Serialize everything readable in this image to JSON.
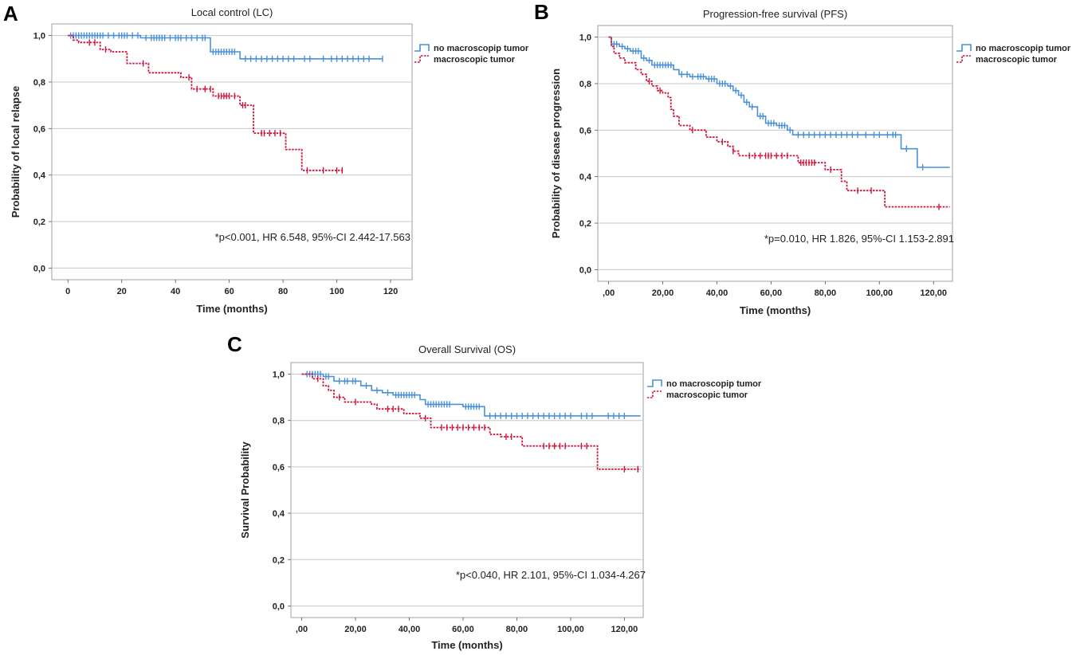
{
  "chart_data": [
    {
      "panel": "A",
      "type": "line",
      "title": "Local control (LC)",
      "xlabel": "Time (months)",
      "ylabel": "Probability of local relapse",
      "xlim": [
        -6,
        128
      ],
      "ylim": [
        -0.05,
        1.05
      ],
      "xticks": [
        0,
        20,
        40,
        60,
        80,
        100,
        120
      ],
      "xtick_labels": [
        "0",
        "20",
        "40",
        "60",
        "80",
        "100",
        "120"
      ],
      "yticks": [
        0.0,
        0.2,
        0.4,
        0.6,
        0.8,
        1.0
      ],
      "ytick_labels": [
        "0,0",
        "0,2",
        "0,4",
        "0,6",
        "0,8",
        "1,0"
      ],
      "grid": true,
      "legend_position": "top-right",
      "annotation": "*p<0.001, HR 6.548, 95%-CI 2.442-17.563",
      "series": [
        {
          "name": "no macroscopip tumor",
          "color": "#4a90d9",
          "steps": [
            [
              0,
              1.0
            ],
            [
              27,
              0.99
            ],
            [
              53,
              0.93
            ],
            [
              64,
              0.9
            ],
            [
              117,
              0.9
            ]
          ],
          "censors": [
            1,
            2,
            3,
            4,
            5,
            6,
            7,
            8,
            9,
            10,
            11,
            12,
            13,
            15,
            17,
            19,
            20,
            21,
            22,
            24,
            26,
            29,
            31,
            32,
            33,
            34,
            35,
            36,
            38,
            40,
            41,
            42,
            44,
            46,
            48,
            50,
            51,
            54,
            55,
            56,
            57,
            58,
            59,
            60,
            61,
            62,
            66,
            68,
            70,
            72,
            74,
            76,
            78,
            80,
            82,
            84,
            88,
            90,
            95,
            98,
            100,
            102,
            104,
            106,
            108,
            110,
            112,
            117
          ]
        },
        {
          "name": "macroscopic tumor",
          "color": "#d0143a",
          "steps": [
            [
              0,
              1.0
            ],
            [
              2,
              0.98
            ],
            [
              4,
              0.97
            ],
            [
              12,
              0.94
            ],
            [
              16,
              0.93
            ],
            [
              22,
              0.88
            ],
            [
              30,
              0.84
            ],
            [
              42,
              0.82
            ],
            [
              46,
              0.77
            ],
            [
              52,
              0.77
            ],
            [
              54,
              0.74
            ],
            [
              64,
              0.7
            ],
            [
              69,
              0.58
            ],
            [
              81,
              0.51
            ],
            [
              87,
              0.42
            ],
            [
              102,
              0.42
            ]
          ],
          "censors": [
            8,
            10,
            14,
            28,
            45,
            48,
            51,
            53,
            56,
            57,
            58,
            59,
            60,
            62,
            65,
            66,
            72,
            73,
            75,
            77,
            79,
            89,
            95,
            100,
            102
          ]
        }
      ]
    },
    {
      "panel": "B",
      "type": "line",
      "title": "Progression-free survival (PFS)",
      "xlabel": "Time (months)",
      "ylabel": "Probability of disease progression",
      "xlim": [
        -4,
        127
      ],
      "ylim": [
        -0.05,
        1.05
      ],
      "xticks": [
        0,
        20,
        40,
        60,
        80,
        100,
        120
      ],
      "xtick_labels": [
        ",00",
        "20,00",
        "40,00",
        "60,00",
        "80,00",
        "100,00",
        "120,00"
      ],
      "yticks": [
        0.0,
        0.2,
        0.4,
        0.6,
        0.8,
        1.0
      ],
      "ytick_labels": [
        "0,0",
        "0,2",
        "0,4",
        "0,6",
        "0,8",
        "1,0"
      ],
      "grid": true,
      "legend_position": "top-right",
      "annotation": "*p=0.010, HR 1.826, 95%-CI 1.153-2.891",
      "series": [
        {
          "name": "no macroscopip tumor",
          "color": "#4a90d9",
          "steps": [
            [
              0,
              1.0
            ],
            [
              1,
              0.97
            ],
            [
              4,
              0.96
            ],
            [
              6,
              0.95
            ],
            [
              8,
              0.94
            ],
            [
              12,
              0.91
            ],
            [
              14,
              0.9
            ],
            [
              16,
              0.88
            ],
            [
              24,
              0.86
            ],
            [
              26,
              0.84
            ],
            [
              30,
              0.83
            ],
            [
              36,
              0.82
            ],
            [
              40,
              0.8
            ],
            [
              44,
              0.79
            ],
            [
              46,
              0.77
            ],
            [
              48,
              0.75
            ],
            [
              50,
              0.72
            ],
            [
              52,
              0.7
            ],
            [
              55,
              0.66
            ],
            [
              58,
              0.63
            ],
            [
              62,
              0.62
            ],
            [
              66,
              0.6
            ],
            [
              68,
              0.58
            ],
            [
              108,
              0.52
            ],
            [
              114,
              0.44
            ],
            [
              126,
              0.44
            ]
          ],
          "censors": [
            2,
            3,
            5,
            7,
            9,
            10,
            11,
            13,
            15,
            17,
            18,
            19,
            20,
            21,
            22,
            23,
            27,
            29,
            31,
            33,
            34,
            35,
            37,
            38,
            39,
            41,
            42,
            43,
            45,
            47,
            49,
            51,
            53,
            56,
            57,
            59,
            60,
            61,
            63,
            64,
            65,
            67,
            70,
            72,
            74,
            76,
            78,
            80,
            82,
            84,
            86,
            88,
            90,
            92,
            95,
            98,
            100,
            103,
            105,
            106,
            110,
            116
          ]
        },
        {
          "name": "macroscopic tumor",
          "color": "#d0143a",
          "steps": [
            [
              0,
              1.0
            ],
            [
              1,
              0.96
            ],
            [
              2,
              0.93
            ],
            [
              4,
              0.91
            ],
            [
              6,
              0.89
            ],
            [
              10,
              0.86
            ],
            [
              12,
              0.84
            ],
            [
              14,
              0.81
            ],
            [
              16,
              0.79
            ],
            [
              18,
              0.77
            ],
            [
              20,
              0.76
            ],
            [
              22,
              0.74
            ],
            [
              23,
              0.69
            ],
            [
              24,
              0.66
            ],
            [
              26,
              0.62
            ],
            [
              30,
              0.6
            ],
            [
              36,
              0.57
            ],
            [
              40,
              0.55
            ],
            [
              44,
              0.53
            ],
            [
              46,
              0.51
            ],
            [
              48,
              0.49
            ],
            [
              70,
              0.46
            ],
            [
              80,
              0.43
            ],
            [
              86,
              0.38
            ],
            [
              88,
              0.34
            ],
            [
              102,
              0.27
            ],
            [
              126,
              0.27
            ]
          ],
          "censors": [
            15,
            19,
            31,
            42,
            46,
            52,
            54,
            56,
            58,
            59,
            60,
            62,
            64,
            66,
            71,
            72,
            73,
            74,
            75,
            76,
            82,
            92,
            97,
            122
          ]
        }
      ]
    },
    {
      "panel": "C",
      "type": "line",
      "title": "Overall Survival (OS)",
      "xlabel": "Time (months)",
      "ylabel": "Survival Probability",
      "xlim": [
        -4,
        127
      ],
      "ylim": [
        -0.05,
        1.05
      ],
      "xticks": [
        0,
        20,
        40,
        60,
        80,
        100,
        120
      ],
      "xtick_labels": [
        ",00",
        "20,00",
        "40,00",
        "60,00",
        "80,00",
        "100,00",
        "120,00"
      ],
      "yticks": [
        0.0,
        0.2,
        0.4,
        0.6,
        0.8,
        1.0
      ],
      "ytick_labels": [
        "0,0",
        "0,2",
        "0,4",
        "0,6",
        "0,8",
        "1,0"
      ],
      "grid": true,
      "legend_position": "top-right",
      "annotation": "*p<0.040, HR 2.101, 95%-CI 1.034-4.267",
      "series": [
        {
          "name": "no macroscopip tumor",
          "color": "#4a90d9",
          "steps": [
            [
              0,
              1.0
            ],
            [
              8,
              0.99
            ],
            [
              12,
              0.97
            ],
            [
              22,
              0.95
            ],
            [
              26,
              0.93
            ],
            [
              30,
              0.92
            ],
            [
              34,
              0.91
            ],
            [
              44,
              0.89
            ],
            [
              46,
              0.87
            ],
            [
              60,
              0.86
            ],
            [
              68,
              0.82
            ],
            [
              126,
              0.82
            ]
          ],
          "censors": [
            2,
            3,
            4,
            5,
            6,
            7,
            9,
            10,
            14,
            16,
            17,
            19,
            20,
            24,
            28,
            32,
            35,
            36,
            37,
            38,
            39,
            40,
            41,
            42,
            47,
            48,
            49,
            50,
            51,
            52,
            53,
            54,
            55,
            61,
            62,
            63,
            64,
            65,
            66,
            70,
            72,
            74,
            76,
            78,
            80,
            82,
            84,
            86,
            88,
            90,
            92,
            94,
            96,
            98,
            100,
            104,
            106,
            108,
            114,
            116,
            118,
            120
          ]
        },
        {
          "name": "macroscopic tumor",
          "color": "#d0143a",
          "steps": [
            [
              0,
              1.0
            ],
            [
              4,
              0.98
            ],
            [
              8,
              0.95
            ],
            [
              10,
              0.93
            ],
            [
              12,
              0.9
            ],
            [
              16,
              0.88
            ],
            [
              26,
              0.87
            ],
            [
              28,
              0.85
            ],
            [
              38,
              0.83
            ],
            [
              44,
              0.81
            ],
            [
              48,
              0.77
            ],
            [
              70,
              0.74
            ],
            [
              74,
              0.73
            ],
            [
              82,
              0.69
            ],
            [
              110,
              0.59
            ],
            [
              126,
              0.59
            ]
          ],
          "censors": [
            6,
            14,
            20,
            32,
            34,
            36,
            46,
            52,
            54,
            56,
            58,
            60,
            62,
            64,
            66,
            68,
            76,
            78,
            90,
            92,
            94,
            96,
            98,
            104,
            106,
            120,
            125
          ]
        }
      ]
    }
  ]
}
